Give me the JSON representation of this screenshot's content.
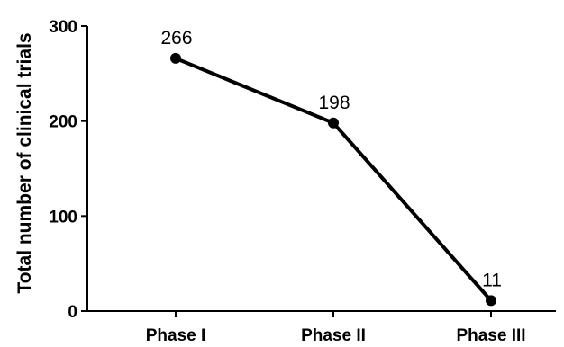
{
  "chart_data": {
    "type": "line",
    "categories": [
      "Phase I",
      "Phase II",
      "Phase III"
    ],
    "series": [
      {
        "values": [
          266,
          198,
          11
        ]
      }
    ],
    "data_labels": [
      "266",
      "198",
      "11"
    ],
    "title": "",
    "xlabel": "",
    "ylabel": "Total number of clinical trials",
    "ylim": [
      0,
      300
    ],
    "yticks": [
      0,
      100,
      200,
      300
    ],
    "ytick_labels": [
      "0",
      "100",
      "200",
      "300"
    ],
    "grid": false,
    "legend": "none",
    "line_color": "#000000",
    "marker_color": "#000000"
  }
}
